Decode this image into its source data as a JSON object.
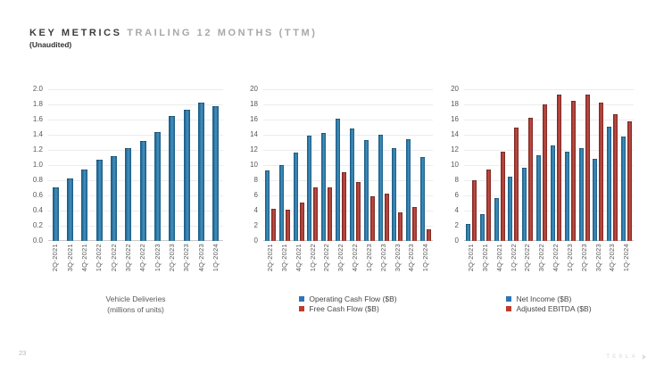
{
  "header": {
    "title_bold": "KEY METRICS",
    "title_light": "TRAILING 12 MONTHS (TTM)",
    "subtitle": "(Unaudited)"
  },
  "footer": {
    "page_number": "23",
    "brand": "TESLA"
  },
  "colors": {
    "bar_blue": "#2e7cab",
    "bar_blue_edge": "#1b5880",
    "bar_red": "#b13f35",
    "bar_red_edge": "#77231d",
    "legend_blue": "#2e74b5",
    "legend_red": "#bf3a2b",
    "gridline": "#ececec",
    "axis_text": "#595959"
  },
  "chart_data": [
    {
      "type": "bar",
      "title": "Vehicle Deliveries (millions of units)",
      "categories": [
        "2Q-2021",
        "3Q-2021",
        "4Q-2021",
        "1Q-2022",
        "2Q-2022",
        "3Q-2022",
        "4Q-2022",
        "1Q-2023",
        "2Q-2023",
        "3Q-2023",
        "4Q-2023",
        "1Q-2024"
      ],
      "series": [
        {
          "name": "Vehicle Deliveries",
          "color": "blue",
          "values": [
            0.7,
            0.81,
            0.93,
            1.06,
            1.11,
            1.21,
            1.31,
            1.42,
            1.63,
            1.72,
            1.81,
            1.77
          ]
        }
      ],
      "ylim": [
        0,
        2.0
      ],
      "ytick_step": 0.2,
      "ytick_decimals": 1,
      "grid": true,
      "legend_position": "bottom-center",
      "legend_lines": [
        "Vehicle Deliveries",
        "(millions of units)"
      ]
    },
    {
      "type": "bar",
      "title": "Operating Cash Flow vs Free Cash Flow",
      "categories": [
        "2Q-2021",
        "3Q-2021",
        "4Q-2021",
        "1Q-2022",
        "2Q-2022",
        "3Q-2022",
        "4Q-2022",
        "1Q-2023",
        "2Q-2023",
        "3Q-2023",
        "4Q-2023",
        "1Q-2024"
      ],
      "series": [
        {
          "name": "Operating Cash Flow ($B)",
          "color": "blue",
          "values": [
            9.2,
            9.9,
            11.5,
            13.8,
            14.1,
            16.0,
            14.7,
            13.2,
            13.9,
            12.1,
            13.3,
            11.0
          ]
        },
        {
          "name": "Free Cash Flow ($B)",
          "color": "red",
          "values": [
            4.1,
            4.0,
            5.0,
            6.9,
            7.0,
            8.9,
            7.6,
            5.8,
            6.1,
            3.7,
            4.3,
            1.4
          ]
        }
      ],
      "ylim": [
        0,
        20
      ],
      "ytick_step": 2,
      "ytick_decimals": 0,
      "grid": true,
      "legend_position": "bottom-center"
    },
    {
      "type": "bar",
      "title": "Net Income vs Adjusted EBITDA",
      "categories": [
        "2Q-2021",
        "3Q-2021",
        "4Q-2021",
        "1Q-2022",
        "2Q-2022",
        "3Q-2022",
        "4Q-2022",
        "1Q-2023",
        "2Q-2023",
        "3Q-2023",
        "4Q-2023",
        "1Q-2024"
      ],
      "series": [
        {
          "name": "Net Income ($B)",
          "color": "blue",
          "values": [
            2.1,
            3.4,
            5.5,
            8.4,
            9.5,
            11.2,
            12.5,
            11.7,
            12.1,
            10.7,
            15.0,
            13.6
          ]
        },
        {
          "name": "Adjusted EBITDA ($B)",
          "color": "red",
          "values": [
            7.9,
            9.3,
            11.6,
            14.8,
            16.1,
            17.9,
            19.2,
            18.4,
            19.2,
            18.1,
            16.6,
            15.7
          ]
        }
      ],
      "ylim": [
        0,
        20
      ],
      "ytick_step": 2,
      "ytick_decimals": 0,
      "grid": true,
      "legend_position": "bottom-center"
    }
  ],
  "layout_note": ""
}
